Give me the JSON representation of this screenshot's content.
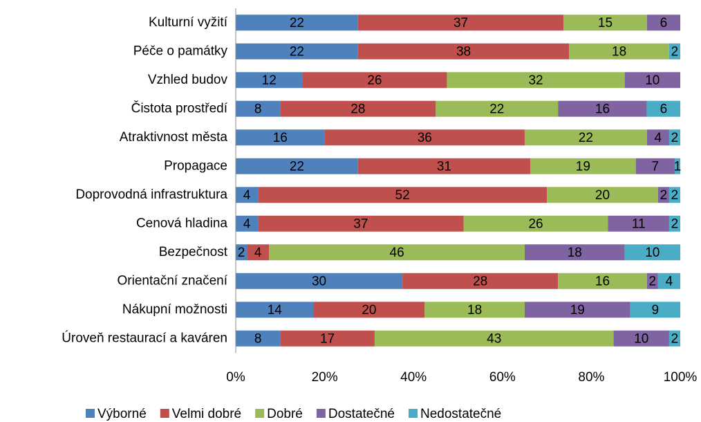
{
  "chart_data": {
    "type": "bar",
    "orientation": "horizontal",
    "stacked": "percent",
    "categories": [
      "Kulturní vyžití",
      "Péče o památky",
      "Vzhled budov",
      "Čistota prostředí",
      "Atraktivnost města",
      "Propagace",
      "Doprovodná infrastruktura",
      "Cenová hladina",
      "Bezpečnost",
      "Orientační značení",
      "Nákupní možnosti",
      "Úroveň restaurací a kaváren"
    ],
    "series": [
      {
        "name": "Výborné",
        "color": "#4f81bd",
        "values": [
          22,
          22,
          12,
          8,
          16,
          22,
          4,
          4,
          2,
          30,
          14,
          8
        ]
      },
      {
        "name": "Velmi dobré",
        "color": "#c0504d",
        "values": [
          37,
          38,
          26,
          28,
          36,
          31,
          52,
          37,
          4,
          28,
          20,
          17
        ]
      },
      {
        "name": "Dobré",
        "color": "#9bbb59",
        "values": [
          15,
          18,
          32,
          22,
          22,
          19,
          20,
          26,
          46,
          16,
          18,
          43
        ]
      },
      {
        "name": "Dostatečné",
        "color": "#8064a2",
        "values": [
          6,
          null,
          10,
          16,
          4,
          7,
          2,
          11,
          18,
          2,
          19,
          10
        ]
      },
      {
        "name": "Nedostatečné",
        "color": "#4bacc6",
        "values": [
          null,
          2,
          null,
          6,
          2,
          1,
          2,
          2,
          10,
          4,
          9,
          2
        ]
      }
    ],
    "xlim": [
      0,
      100
    ],
    "xticks": [
      {
        "value": 0,
        "label": "0%"
      },
      {
        "value": 20,
        "label": "20%"
      },
      {
        "value": 40,
        "label": "40%"
      },
      {
        "value": 60,
        "label": "60%"
      },
      {
        "value": 80,
        "label": "80%"
      },
      {
        "value": 100,
        "label": "100%"
      }
    ],
    "legend": "bottom"
  }
}
